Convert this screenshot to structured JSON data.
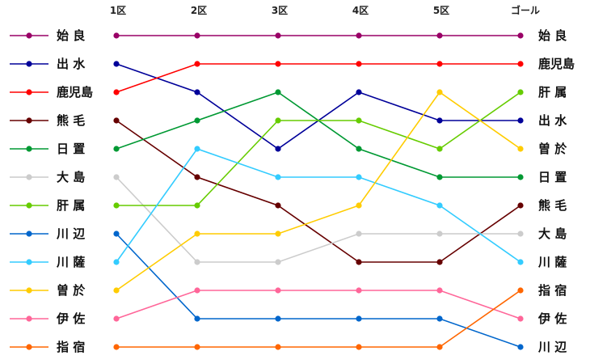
{
  "chart_data": {
    "type": "line",
    "title": "",
    "xlabel": "",
    "ylabel": "",
    "categories": [
      "1区",
      "2区",
      "3区",
      "4区",
      "5区",
      "ゴール"
    ],
    "start_order": [
      "始良",
      "出水",
      "鹿児島",
      "熊毛",
      "日置",
      "大島",
      "肝属",
      "川辺",
      "川薩",
      "曽於",
      "伊佐",
      "指宿"
    ],
    "legend_labels": [
      "始 良",
      "出 水",
      "鹿児島",
      "熊 毛",
      "日 置",
      "大 島",
      "肝 属",
      "川 辺",
      "川 薩",
      "曽 於",
      "伊 佐",
      "指 宿"
    ],
    "final_labels": [
      "始 良",
      "鹿児島",
      "肝 属",
      "出 水",
      "曽 於",
      "日 置",
      "熊 毛",
      "大 島",
      "川 薩",
      "指 宿",
      "伊 佐",
      "川 辺"
    ],
    "y_axis": "rank (1 = top)",
    "ylim": [
      1,
      12
    ],
    "grid": false,
    "legend_placement": "left",
    "series": [
      {
        "name": "始 良",
        "color": "#990066",
        "values": [
          1,
          1,
          1,
          1,
          1,
          1
        ]
      },
      {
        "name": "出 水",
        "color": "#000099",
        "values": [
          2,
          3,
          5,
          3,
          4,
          4
        ]
      },
      {
        "name": "鹿児島",
        "color": "#ff0000",
        "values": [
          3,
          2,
          2,
          2,
          2,
          2
        ]
      },
      {
        "name": "熊 毛",
        "color": "#660000",
        "values": [
          4,
          6,
          7,
          9,
          9,
          7
        ]
      },
      {
        "name": "日 置",
        "color": "#009933",
        "values": [
          5,
          4,
          3,
          5,
          6,
          6
        ]
      },
      {
        "name": "大 島",
        "color": "#cccccc",
        "values": [
          6,
          9,
          9,
          8,
          8,
          8
        ]
      },
      {
        "name": "肝 属",
        "color": "#66cc00",
        "values": [
          7,
          7,
          4,
          4,
          5,
          3
        ]
      },
      {
        "name": "川 辺",
        "color": "#0066cc",
        "values": [
          8,
          11,
          11,
          11,
          11,
          12
        ]
      },
      {
        "name": "川 薩",
        "color": "#33ccff",
        "values": [
          9,
          5,
          6,
          6,
          7,
          9
        ]
      },
      {
        "name": "曽 於",
        "color": "#ffcc00",
        "values": [
          10,
          8,
          8,
          7,
          3,
          5
        ]
      },
      {
        "name": "伊 佐",
        "color": "#ff6699",
        "values": [
          11,
          10,
          10,
          10,
          10,
          11
        ]
      },
      {
        "name": "指 宿",
        "color": "#ff6600",
        "values": [
          12,
          12,
          12,
          12,
          12,
          10
        ]
      }
    ]
  }
}
